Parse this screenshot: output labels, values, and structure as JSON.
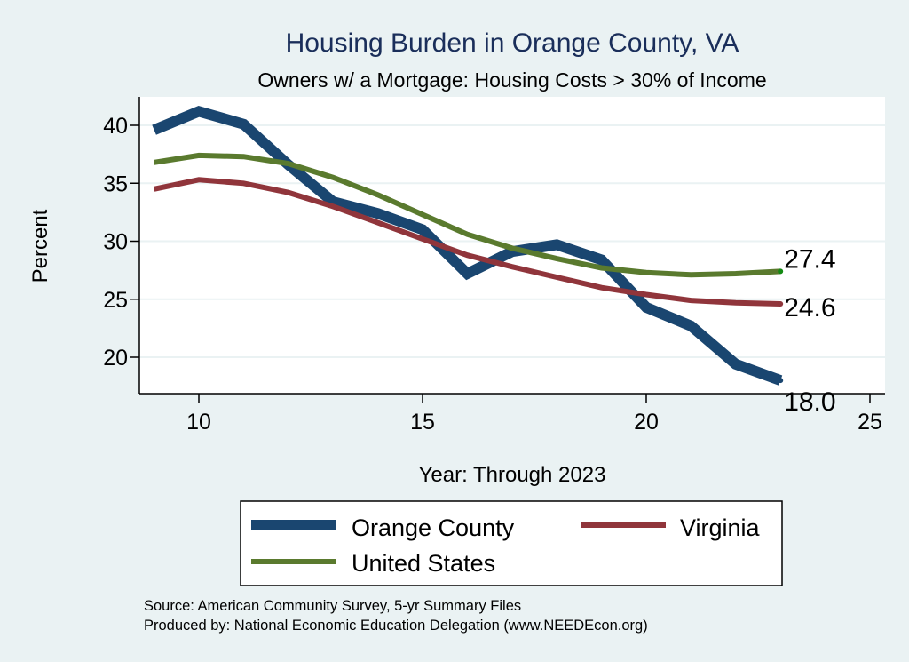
{
  "chart_data": {
    "type": "line",
    "title": "Housing Burden in Orange County, VA",
    "subtitle": "Owners w/ a Mortgage: Housing Costs > 30% of Income",
    "xlabel": "Year: Through 2023",
    "ylabel": "Percent",
    "xlim": [
      8.3,
      25.4
    ],
    "ylim": [
      16.8,
      43.5
    ],
    "xticks": [
      10,
      15,
      20,
      25
    ],
    "xtick_labels": [
      "10",
      "15",
      "20",
      "25"
    ],
    "yticks": [
      20,
      25,
      30,
      35,
      40
    ],
    "ytick_labels": [
      "20",
      "25",
      "30",
      "35",
      "40"
    ],
    "grid": true,
    "legend_position": "bottom",
    "x": [
      9,
      10,
      11,
      12,
      13,
      14,
      15,
      16,
      17,
      18,
      19,
      20,
      21,
      22,
      23
    ],
    "series": [
      {
        "name": "Orange County",
        "color": "#1a4670",
        "values": [
          39.6,
          41.2,
          40.1,
          36.6,
          33.4,
          32.4,
          31.0,
          27.2,
          29.1,
          29.7,
          28.4,
          24.3,
          22.7,
          19.4,
          18.0
        ],
        "end_label": "18.0"
      },
      {
        "name": "Virginia",
        "color": "#90353b",
        "values": [
          34.5,
          35.3,
          35.0,
          34.2,
          33.0,
          31.6,
          30.2,
          28.8,
          27.8,
          26.9,
          26.0,
          25.4,
          24.9,
          24.7,
          24.6
        ],
        "end_label": "24.6"
      },
      {
        "name": "United States",
        "color": "#5a7a2e",
        "values": [
          36.8,
          37.4,
          37.3,
          36.7,
          35.5,
          34.0,
          32.3,
          30.6,
          29.4,
          28.5,
          27.7,
          27.3,
          27.1,
          27.2,
          27.4
        ],
        "end_label": "27.4"
      }
    ],
    "notes": [
      "Source: American Community Survey, 5-yr Summary Files",
      "Produced by: National Economic Education Delegation (www.NEEDEcon.org)"
    ]
  }
}
